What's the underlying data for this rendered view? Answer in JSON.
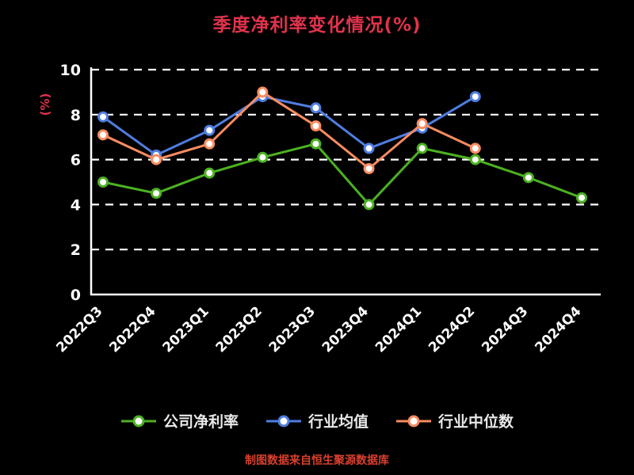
{
  "title": "季度净利率变化情况(%)",
  "footer": "制图数据来自恒生聚源数据库",
  "colors": {
    "background": "#000000",
    "title": "#e1334c",
    "axis": "#ffffff",
    "axis_text": "#ffffff",
    "grid": "#ffffff",
    "legend_text": "#e8e8e8",
    "footer": "#d8402e",
    "marker_fill": "#ffffff"
  },
  "chart_data": {
    "type": "line",
    "title": "季度净利率变化情况(%)",
    "xlabel": "",
    "ylabel": "(%)",
    "ylim": [
      0,
      10
    ],
    "yticks": [
      0,
      2,
      4,
      6,
      8,
      10
    ],
    "grid": "horizontal-dashed",
    "legend_position": "bottom",
    "categories": [
      "2022Q3",
      "2022Q4",
      "2023Q1",
      "2023Q2",
      "2023Q3",
      "2023Q4",
      "2024Q1",
      "2024Q2",
      "2024Q3",
      "2024Q4"
    ],
    "series": [
      {
        "name": "公司净利率",
        "color": "#4cb122",
        "values": [
          5.0,
          4.5,
          5.4,
          6.1,
          6.7,
          4.0,
          6.5,
          6.0,
          5.2,
          4.3
        ]
      },
      {
        "name": "行业均值",
        "color": "#4f7de0",
        "values": [
          7.9,
          6.2,
          7.3,
          8.8,
          8.3,
          6.5,
          7.4,
          8.8,
          null,
          null
        ]
      },
      {
        "name": "行业中位数",
        "color": "#f88c61",
        "values": [
          7.1,
          6.0,
          6.7,
          9.0,
          7.5,
          5.6,
          7.6,
          6.5,
          null,
          null
        ]
      }
    ]
  }
}
